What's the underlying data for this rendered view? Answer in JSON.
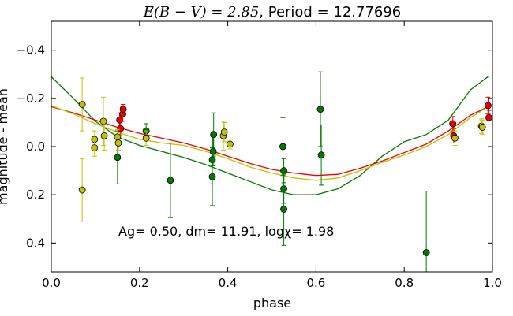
{
  "chart_data": {
    "type": "scatter",
    "title_math": "E(B − V) = 2.85",
    "title_rest": ", Period = 12.77696",
    "xlabel": "phase",
    "ylabel": "magnitude - mean",
    "xlim": [
      0.0,
      1.0
    ],
    "ylim": [
      0.52,
      -0.52
    ],
    "y_inverted": true,
    "xticks": [
      0.0,
      0.2,
      0.4,
      0.6,
      0.8,
      1.0
    ],
    "xtick_labels": [
      "0.0",
      "0.2",
      "0.4",
      "0.6",
      "0.8",
      "1.0"
    ],
    "yticks": [
      -0.4,
      -0.2,
      0.0,
      0.2,
      0.4
    ],
    "ytick_labels": [
      "−0.4",
      "−0.2",
      "0.0",
      "0.2",
      "0.4"
    ],
    "grid": false,
    "annotation": "Ag= 0.50, dm=  11.91, logχ=  1.98",
    "colors": {
      "green": "#007a00",
      "red": "#ee0000",
      "yellow": "#c2c200"
    },
    "series": [
      {
        "color": "#007a00",
        "points": [
          {
            "x": 0.15,
            "y": 0.045,
            "err": 0.11
          },
          {
            "x": 0.215,
            "y": -0.065,
            "err": 0.03
          },
          {
            "x": 0.27,
            "y": 0.14,
            "err": 0.155
          },
          {
            "x": 0.365,
            "y": 0.125,
            "err": 0.12
          },
          {
            "x": 0.365,
            "y": 0.055,
            "err": 0.1
          },
          {
            "x": 0.367,
            "y": 0.02,
            "err": 0.06
          },
          {
            "x": 0.368,
            "y": -0.05,
            "err": 0.09
          },
          {
            "x": 0.525,
            "y": 0.0,
            "err": 0.12
          },
          {
            "x": 0.527,
            "y": 0.1,
            "err": 0.05
          },
          {
            "x": 0.527,
            "y": 0.175,
            "err": 0.06
          },
          {
            "x": 0.527,
            "y": 0.26,
            "err": 0.15
          },
          {
            "x": 0.61,
            "y": -0.155,
            "err": 0.155
          },
          {
            "x": 0.612,
            "y": 0.035,
            "err": 0.125
          },
          {
            "x": 0.85,
            "y": 0.44,
            "err": 0.255
          }
        ]
      },
      {
        "color": "#ee0000",
        "points": [
          {
            "x": 0.155,
            "y": -0.11,
            "err": 0.03
          },
          {
            "x": 0.157,
            "y": -0.075,
            "err": 0.03
          },
          {
            "x": 0.162,
            "y": -0.135,
            "err": 0.03
          },
          {
            "x": 0.163,
            "y": -0.155,
            "err": 0.02
          },
          {
            "x": 0.91,
            "y": -0.095,
            "err": 0.03
          },
          {
            "x": 0.912,
            "y": -0.045,
            "err": 0.03
          },
          {
            "x": 0.99,
            "y": -0.17,
            "err": 0.035
          },
          {
            "x": 0.992,
            "y": -0.12,
            "err": 0.03
          }
        ]
      },
      {
        "color": "#c2c200",
        "points": [
          {
            "x": 0.07,
            "y": -0.175,
            "err": 0.11
          },
          {
            "x": 0.07,
            "y": 0.18,
            "err": 0.13
          },
          {
            "x": 0.098,
            "y": -0.03,
            "err": 0.035
          },
          {
            "x": 0.098,
            "y": 0.005,
            "err": 0.035
          },
          {
            "x": 0.118,
            "y": -0.105,
            "err": 0.1
          },
          {
            "x": 0.12,
            "y": -0.045,
            "err": 0.06
          },
          {
            "x": 0.15,
            "y": -0.04,
            "err": 0.03
          },
          {
            "x": 0.152,
            "y": -0.015,
            "err": 0.03
          },
          {
            "x": 0.215,
            "y": -0.035,
            "err": 0.03
          },
          {
            "x": 0.39,
            "y": -0.045,
            "err": 0.06
          },
          {
            "x": 0.392,
            "y": -0.06,
            "err": 0.04
          },
          {
            "x": 0.405,
            "y": -0.01,
            "err": 0.02
          },
          {
            "x": 0.915,
            "y": -0.035,
            "err": 0.03
          },
          {
            "x": 0.975,
            "y": -0.085,
            "err": 0.03
          },
          {
            "x": 0.977,
            "y": -0.08,
            "err": 0.03
          }
        ]
      }
    ],
    "curves": [
      {
        "color": "#007a00",
        "x": [
          0.0,
          0.05,
          0.1,
          0.15,
          0.2,
          0.25,
          0.3,
          0.35,
          0.4,
          0.45,
          0.5,
          0.55,
          0.6,
          0.65,
          0.7,
          0.75,
          0.8,
          0.85,
          0.9,
          0.95,
          0.99
        ],
        "y": [
          -0.29,
          -0.2,
          -0.105,
          -0.04,
          -0.005,
          0.02,
          0.045,
          0.075,
          0.11,
          0.145,
          0.18,
          0.2,
          0.2,
          0.175,
          0.12,
          0.04,
          -0.02,
          -0.05,
          -0.11,
          -0.235,
          -0.29
        ]
      },
      {
        "color": "#ee0000",
        "x": [
          0.0,
          0.05,
          0.1,
          0.15,
          0.2,
          0.25,
          0.3,
          0.35,
          0.4,
          0.45,
          0.5,
          0.55,
          0.6,
          0.65,
          0.7,
          0.75,
          0.8,
          0.85,
          0.9,
          0.95,
          0.99
        ],
        "y": [
          -0.165,
          -0.14,
          -0.11,
          -0.08,
          -0.055,
          -0.035,
          -0.015,
          0.01,
          0.04,
          0.07,
          0.095,
          0.11,
          0.12,
          0.115,
          0.09,
          0.06,
          0.025,
          -0.01,
          -0.065,
          -0.13,
          -0.165
        ]
      },
      {
        "color": "#c2c200",
        "x": [
          0.0,
          0.05,
          0.1,
          0.15,
          0.2,
          0.25,
          0.3,
          0.35,
          0.4,
          0.45,
          0.5,
          0.55,
          0.6,
          0.65,
          0.7,
          0.75,
          0.8,
          0.85,
          0.9,
          0.95,
          0.99
        ],
        "y": [
          -0.17,
          -0.135,
          -0.095,
          -0.06,
          -0.03,
          -0.015,
          -0.005,
          0.02,
          0.05,
          0.085,
          0.11,
          0.13,
          0.14,
          0.13,
          0.1,
          0.065,
          0.035,
          0.0,
          -0.05,
          -0.12,
          -0.165
        ]
      }
    ]
  }
}
